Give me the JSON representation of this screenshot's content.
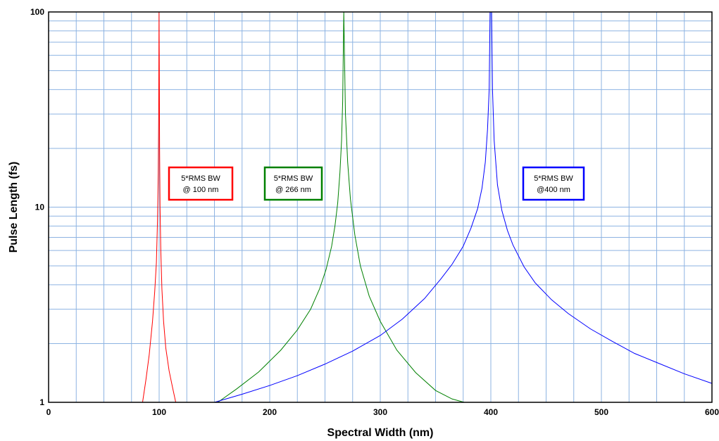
{
  "chart_data": {
    "type": "line",
    "title": "",
    "xlabel": "Spectral Width (nm)",
    "ylabel": "Pulse Length (fs)",
    "xlim": [
      0,
      600
    ],
    "ylim": [
      1,
      100
    ],
    "yscale": "log",
    "grid": true,
    "x_major_ticks": [
      0,
      100,
      200,
      300,
      400,
      500,
      600
    ],
    "y_major_ticks": [
      1,
      10,
      100
    ],
    "series": [
      {
        "color": "#ff0000",
        "x": [
          85,
          88,
          91,
          94,
          96,
          97.5,
          98.5,
          99.2,
          99.6,
          99.9,
          100.1,
          100.4,
          100.8,
          101.5,
          102.5,
          104,
          106,
          109,
          112,
          115
        ],
        "y": [
          1.0,
          1.3,
          1.75,
          2.6,
          3.7,
          5.2,
          8.5,
          15,
          30,
          100,
          60,
          20,
          10,
          6,
          3.8,
          2.6,
          1.9,
          1.45,
          1.2,
          1.0
        ]
      },
      {
        "color": "#008000",
        "x": [
          153,
          170,
          190,
          210,
          225,
          237,
          245,
          251,
          256,
          259,
          261.5,
          263.5,
          265,
          266,
          267,
          268.5,
          270.5,
          273,
          277,
          282,
          290,
          300,
          315,
          332,
          350,
          365,
          376
        ],
        "y": [
          1.0,
          1.17,
          1.43,
          1.85,
          2.35,
          3.0,
          3.8,
          4.8,
          6.3,
          8.0,
          10.5,
          15,
          22,
          35,
          100,
          30,
          17,
          11,
          7.2,
          5.0,
          3.5,
          2.6,
          1.85,
          1.42,
          1.15,
          1.04,
          1.0
        ]
      },
      {
        "color": "#0000ff",
        "x": [
          150,
          175,
          200,
          225,
          250,
          275,
          300,
          320,
          340,
          355,
          365,
          375,
          382,
          388,
          392,
          395,
          397,
          398.5,
          399.3,
          400.7,
          401.5,
          403,
          406,
          410,
          415,
          420,
          430,
          440,
          455,
          470,
          490,
          510,
          530,
          550,
          575,
          600
        ],
        "y": [
          1.0,
          1.1,
          1.22,
          1.37,
          1.57,
          1.83,
          2.2,
          2.67,
          3.4,
          4.3,
          5.1,
          6.3,
          7.8,
          9.8,
          12.5,
          17,
          25,
          40,
          100,
          100,
          40,
          22,
          13,
          9.6,
          7.6,
          6.4,
          4.95,
          4.1,
          3.35,
          2.85,
          2.38,
          2.05,
          1.78,
          1.6,
          1.4,
          1.25
        ]
      }
    ],
    "annotations": [
      {
        "line1": "5*RMS BW",
        "line2": "@ 100 nm",
        "color": "#ff0000"
      },
      {
        "line1": "5*RMS BW",
        "line2": "@ 266 nm",
        "color": "#008000"
      },
      {
        "line1": "5*RMS BW",
        "line2": "@400 nm",
        "color": "#0000ff"
      }
    ],
    "colors": {
      "grid": "#8db3e2",
      "frame": "#000000",
      "background": "#ffffff"
    }
  }
}
